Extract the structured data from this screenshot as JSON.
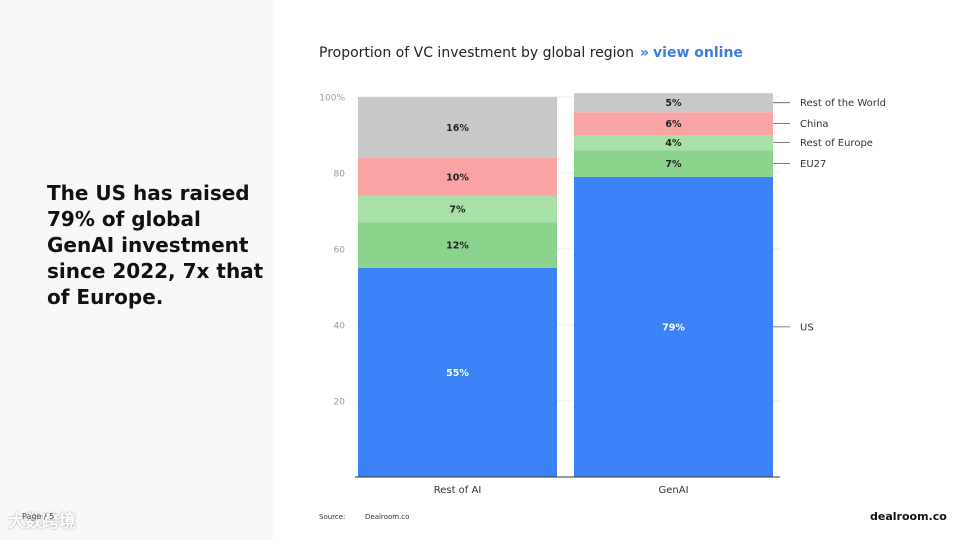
{
  "headline": "The US has raised 79% of global GenAI investment since 2022, 7x that of Europe.",
  "page_label": "Page / 5",
  "watermark": "大数跨境",
  "title_row": {
    "title": "Proportion of VC investment by global region",
    "separator": "»",
    "link": "view online"
  },
  "footer": {
    "source_label": "Source:",
    "source_value": "Dealroom.co",
    "brand": "dealroom.co"
  },
  "chart_data": {
    "type": "bar",
    "stacked": true,
    "categories": [
      "Rest of AI",
      "GenAI"
    ],
    "y_ticks": [
      20,
      40,
      60,
      80,
      100
    ],
    "y_tick_labels": [
      "20",
      "40",
      "60",
      "80",
      "100%"
    ],
    "ylim": [
      0,
      100
    ],
    "series": [
      {
        "name": "US",
        "values": [
          55,
          79
        ],
        "labels": [
          "55%",
          "79%"
        ],
        "color": "#3b82f6",
        "label_color": "#ffffff"
      },
      {
        "name": "EU27",
        "values": [
          12,
          7
        ],
        "labels": [
          "12%",
          "7%"
        ],
        "color": "#8cd48e",
        "label_color": "#222222"
      },
      {
        "name": "Rest of Europe",
        "values": [
          7,
          4
        ],
        "labels": [
          "7%",
          "4%"
        ],
        "color": "#a9e0a6",
        "label_color": "#222222"
      },
      {
        "name": "China",
        "values": [
          10,
          6
        ],
        "labels": [
          "10%",
          "6%"
        ],
        "color": "#f9a3a3",
        "label_color": "#222222"
      },
      {
        "name": "Rest of the World",
        "values": [
          16,
          5
        ],
        "labels": [
          "16%",
          "5%"
        ],
        "color": "#c8c8c8",
        "label_color": "#222222"
      }
    ],
    "legend_position": "right"
  }
}
